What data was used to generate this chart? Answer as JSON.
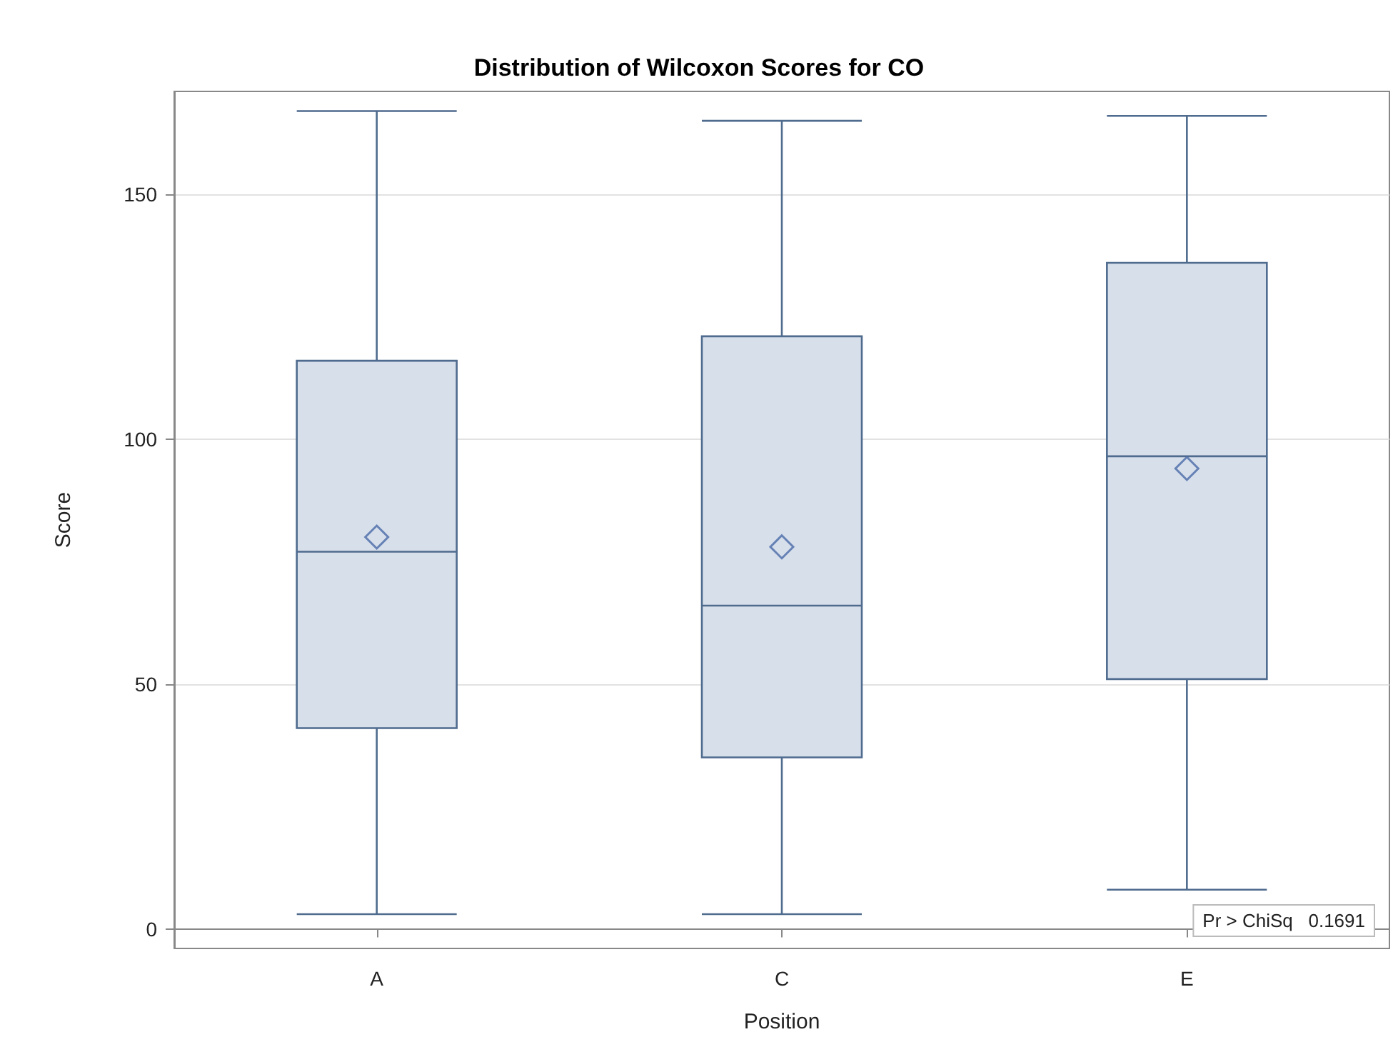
{
  "chart_data": {
    "type": "box",
    "title": "Distribution of Wilcoxon Scores for CO",
    "xlabel": "Position",
    "ylabel": "Score",
    "categories": [
      "A",
      "C",
      "E"
    ],
    "boxes": [
      {
        "low": 3,
        "q1": 41,
        "median": 77,
        "q3": 116,
        "high": 167,
        "mean": 80
      },
      {
        "low": 3,
        "q1": 35,
        "median": 66,
        "q3": 121,
        "high": 165,
        "mean": 78
      },
      {
        "low": 8,
        "q1": 51,
        "median": 96.5,
        "q3": 136,
        "high": 166,
        "mean": 94
      }
    ],
    "color": "#4f6b8e",
    "ylim": [
      -4,
      171
    ],
    "yticks": [
      0,
      50,
      100,
      150
    ],
    "grid": "y",
    "annotations": [
      "Pr > ChiSq   0.1691"
    ]
  }
}
